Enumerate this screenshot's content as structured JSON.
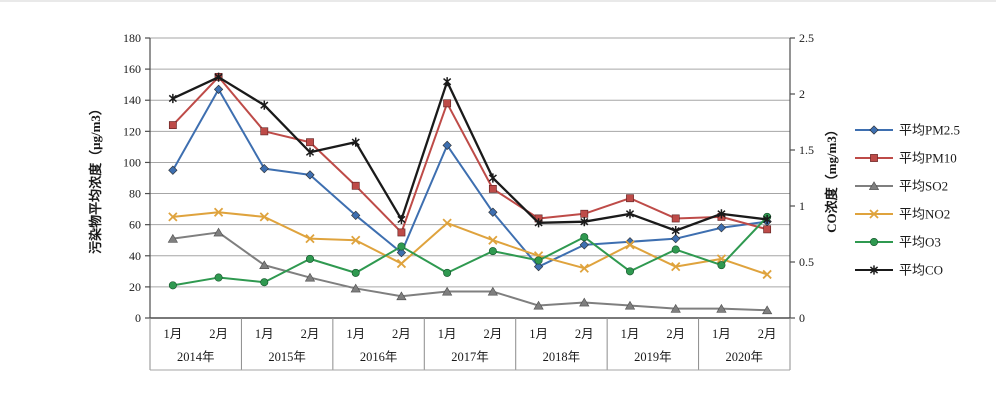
{
  "chart_data": {
    "type": "line",
    "title": "",
    "grid": true,
    "legend_position": "right",
    "categories": [
      "2014-1月",
      "2014-2月",
      "2015-1月",
      "2015-2月",
      "2016-1月",
      "2016-2月",
      "2017-1月",
      "2017-2月",
      "2018-1月",
      "2018-2月",
      "2019-1月",
      "2019-2月",
      "2020-1月",
      "2020-2月"
    ],
    "x_axis": {
      "month_labels": [
        "1月",
        "2月"
      ],
      "years": [
        "2014年",
        "2015年",
        "2016年",
        "2017年",
        "2018年",
        "2019年",
        "2020年"
      ]
    },
    "y_axis_left": {
      "label": "污染物平均浓度（μg/m3）",
      "min": 0,
      "max": 180,
      "step": 20,
      "ticks": [
        "0",
        "20",
        "40",
        "60",
        "80",
        "100",
        "120",
        "140",
        "160",
        "180"
      ]
    },
    "y_axis_right": {
      "label": "CO浓度（mg/m3）",
      "min": 0,
      "max": 2.5,
      "step": 0.5,
      "ticks": [
        "0",
        "0.5",
        "1",
        "1.5",
        "2",
        "2.5"
      ]
    },
    "series": [
      {
        "name": "平均PM2.5",
        "color": "#3E6FB0",
        "marker": "diamond",
        "axis": "left",
        "values": [
          95,
          147,
          96,
          92,
          66,
          42,
          111,
          68,
          33,
          47,
          49,
          51,
          58,
          62
        ]
      },
      {
        "name": "平均PM10",
        "color": "#BE4B48",
        "marker": "square",
        "axis": "left",
        "values": [
          124,
          155,
          120,
          113,
          85,
          55,
          138,
          83,
          64,
          67,
          77,
          64,
          65,
          57
        ]
      },
      {
        "name": "平均SO2",
        "color": "#7F7F7F",
        "marker": "triangle",
        "axis": "left",
        "values": [
          51,
          55,
          34,
          26,
          19,
          14,
          17,
          17,
          8,
          10,
          8,
          6,
          6,
          5
        ]
      },
      {
        "name": "平均NO2",
        "color": "#DFA33D",
        "marker": "x",
        "axis": "left",
        "values": [
          65,
          68,
          65,
          51,
          50,
          35,
          61,
          50,
          40,
          32,
          47,
          33,
          38,
          28
        ]
      },
      {
        "name": "平均O3",
        "color": "#2F9950",
        "marker": "circle",
        "axis": "left",
        "values": [
          21,
          26,
          23,
          38,
          29,
          46,
          29,
          43,
          37,
          52,
          30,
          44,
          34,
          65
        ]
      },
      {
        "name": "平均CO",
        "color": "#1A1A1A",
        "marker": "asterisk",
        "axis": "right",
        "values": [
          1.96,
          2.15,
          1.9,
          1.48,
          1.57,
          0.88,
          2.11,
          1.25,
          0.85,
          0.86,
          0.93,
          0.78,
          0.93,
          0.88
        ]
      }
    ],
    "colors": {
      "gridline": "#A6A6A6",
      "axis_line": "#4D4D4D",
      "separator": "#8C8C8C"
    }
  }
}
